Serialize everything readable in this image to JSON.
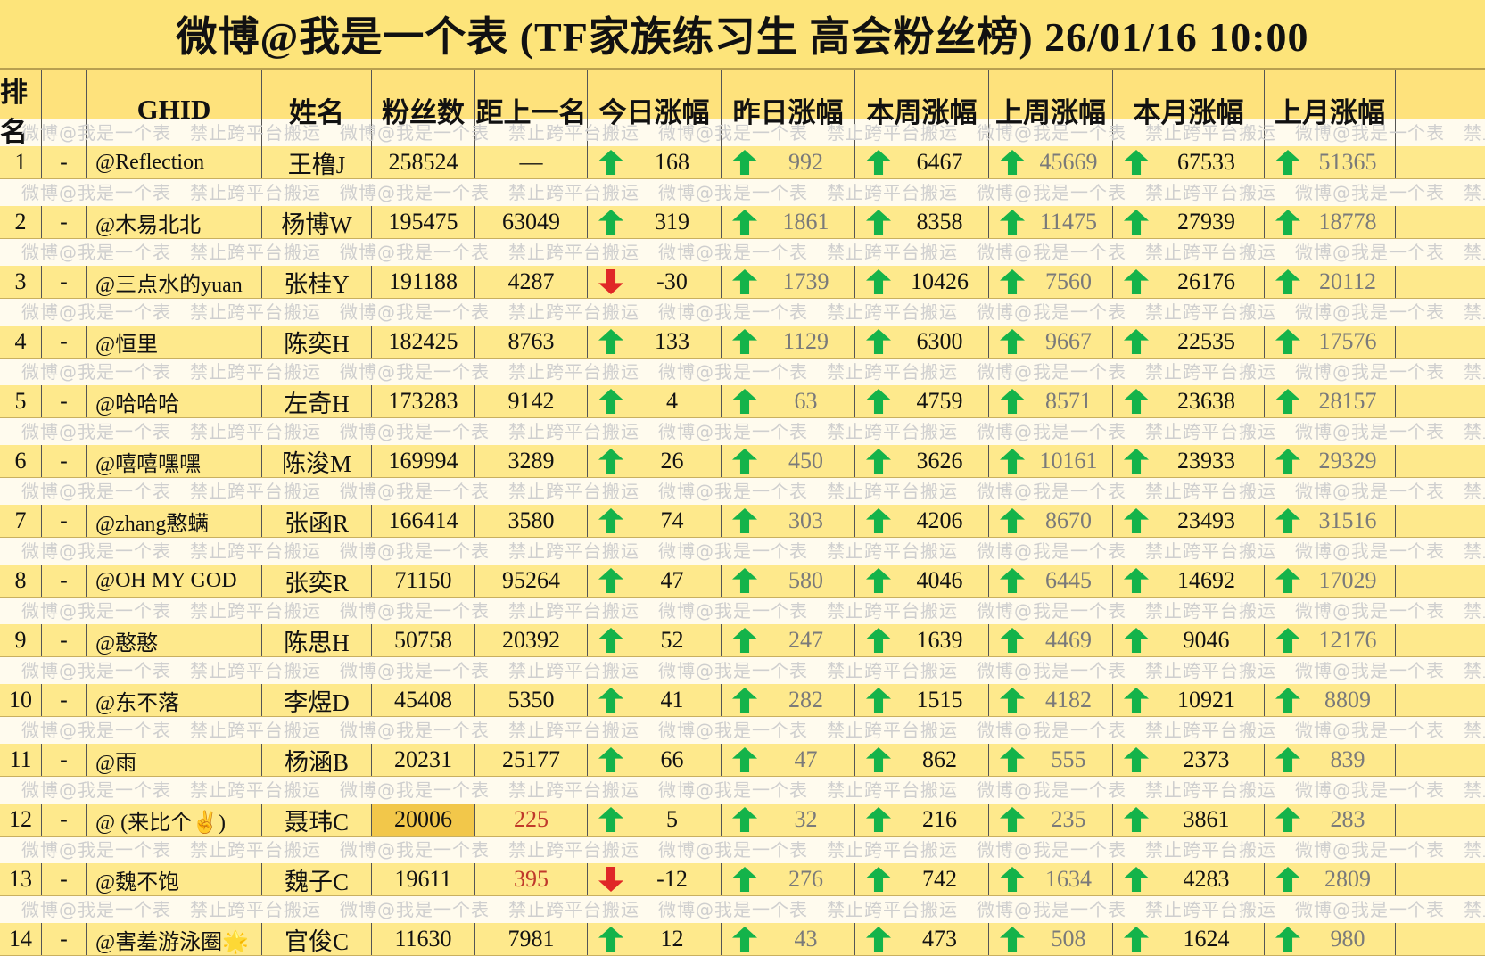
{
  "title": "微博@我是一个表 (TF家族练习生 高会粉丝榜)  26/01/16 10:00",
  "watermark": "微博@我是一个表　禁止跨平台搬运　微博@我是一个表　禁止跨平台搬运　微博@我是一个表　禁止跨平台搬运　微博@我是一个表　禁止跨平台搬运　微博@我是一个表　禁止跨平台搬运　微博@我是一个表",
  "colors": {
    "up": "#14b34a",
    "down": "#e02727",
    "highlight": "#f2c74a",
    "gap_red": "#c0392b"
  },
  "columns": [
    "排名",
    "GHID",
    "姓名",
    "粉丝数",
    "距上一名",
    "今日涨幅",
    "昨日涨幅",
    "本周涨幅",
    "上周涨幅",
    "本月涨幅",
    "上月涨幅"
  ],
  "rows": [
    {
      "rank": "1",
      "trend": "-",
      "ghid": "@Reflection",
      "name": "王橹J",
      "fans": "258524",
      "gap": "—",
      "today": "168",
      "today_dir": "up",
      "yesterday": "992",
      "week": "6467",
      "last_week": "45669",
      "month": "67533",
      "last_month": "51365"
    },
    {
      "rank": "2",
      "trend": "-",
      "ghid": "@木易北北",
      "name": "杨博W",
      "fans": "195475",
      "gap": "63049",
      "today": "319",
      "today_dir": "up",
      "yesterday": "1861",
      "week": "8358",
      "last_week": "11475",
      "month": "27939",
      "last_month": "18778"
    },
    {
      "rank": "3",
      "trend": "-",
      "ghid": "@三点水的yuan",
      "name": "张桂Y",
      "fans": "191188",
      "gap": "4287",
      "today": "-30",
      "today_dir": "down",
      "yesterday": "1739",
      "week": "10426",
      "last_week": "7560",
      "month": "26176",
      "last_month": "20112"
    },
    {
      "rank": "4",
      "trend": "-",
      "ghid": "@恒里",
      "name": "陈奕H",
      "fans": "182425",
      "gap": "8763",
      "today": "133",
      "today_dir": "up",
      "yesterday": "1129",
      "week": "6300",
      "last_week": "9667",
      "month": "22535",
      "last_month": "17576"
    },
    {
      "rank": "5",
      "trend": "-",
      "ghid": "@哈哈哈",
      "name": "左奇H",
      "fans": "173283",
      "gap": "9142",
      "today": "4",
      "today_dir": "up",
      "yesterday": "63",
      "week": "4759",
      "last_week": "8571",
      "month": "23638",
      "last_month": "28157"
    },
    {
      "rank": "6",
      "trend": "-",
      "ghid": "@嘻嘻嘿嘿",
      "name": "陈浚M",
      "fans": "169994",
      "gap": "3289",
      "today": "26",
      "today_dir": "up",
      "yesterday": "450",
      "week": "3626",
      "last_week": "10161",
      "month": "23933",
      "last_month": "29329"
    },
    {
      "rank": "7",
      "trend": "-",
      "ghid": "@zhang憨螨",
      "name": "张函R",
      "fans": "166414",
      "gap": "3580",
      "today": "74",
      "today_dir": "up",
      "yesterday": "303",
      "week": "4206",
      "last_week": "8670",
      "month": "23493",
      "last_month": "31516"
    },
    {
      "rank": "8",
      "trend": "-",
      "ghid": "@OH MY GOD",
      "name": "张奕R",
      "fans": "71150",
      "gap": "95264",
      "today": "47",
      "today_dir": "up",
      "yesterday": "580",
      "week": "4046",
      "last_week": "6445",
      "month": "14692",
      "last_month": "17029"
    },
    {
      "rank": "9",
      "trend": "-",
      "ghid": "@憨憨",
      "name": "陈思H",
      "fans": "50758",
      "gap": "20392",
      "today": "52",
      "today_dir": "up",
      "yesterday": "247",
      "week": "1639",
      "last_week": "4469",
      "month": "9046",
      "last_month": "12176"
    },
    {
      "rank": "10",
      "trend": "-",
      "ghid": "@东不落",
      "name": "李煜D",
      "fans": "45408",
      "gap": "5350",
      "today": "41",
      "today_dir": "up",
      "yesterday": "282",
      "week": "1515",
      "last_week": "4182",
      "month": "10921",
      "last_month": "8809"
    },
    {
      "rank": "11",
      "trend": "-",
      "ghid": "@雨",
      "name": "杨涵B",
      "fans": "20231",
      "gap": "25177",
      "today": "66",
      "today_dir": "up",
      "yesterday": "47",
      "week": "862",
      "last_week": "555",
      "month": "2373",
      "last_month": "839"
    },
    {
      "rank": "12",
      "trend": "-",
      "ghid": "@ (来比个✌️)",
      "name": "聂玮C",
      "fans": "20006",
      "gap": "225",
      "today": "5",
      "today_dir": "up",
      "yesterday": "32",
      "week": "216",
      "last_week": "235",
      "month": "3861",
      "last_month": "283",
      "fans_highlight": true,
      "gap_red": true
    },
    {
      "rank": "13",
      "trend": "-",
      "ghid": "@魏不饱",
      "name": "魏子C",
      "fans": "19611",
      "gap": "395",
      "today": "-12",
      "today_dir": "down",
      "yesterday": "276",
      "week": "742",
      "last_week": "1634",
      "month": "4283",
      "last_month": "2809",
      "gap_red": true
    },
    {
      "rank": "14",
      "trend": "-",
      "ghid": "@害羞游泳圈🌟",
      "name": "官俊C",
      "fans": "11630",
      "gap": "7981",
      "today": "12",
      "today_dir": "up",
      "yesterday": "43",
      "week": "473",
      "last_week": "508",
      "month": "1624",
      "last_month": "980"
    }
  ]
}
